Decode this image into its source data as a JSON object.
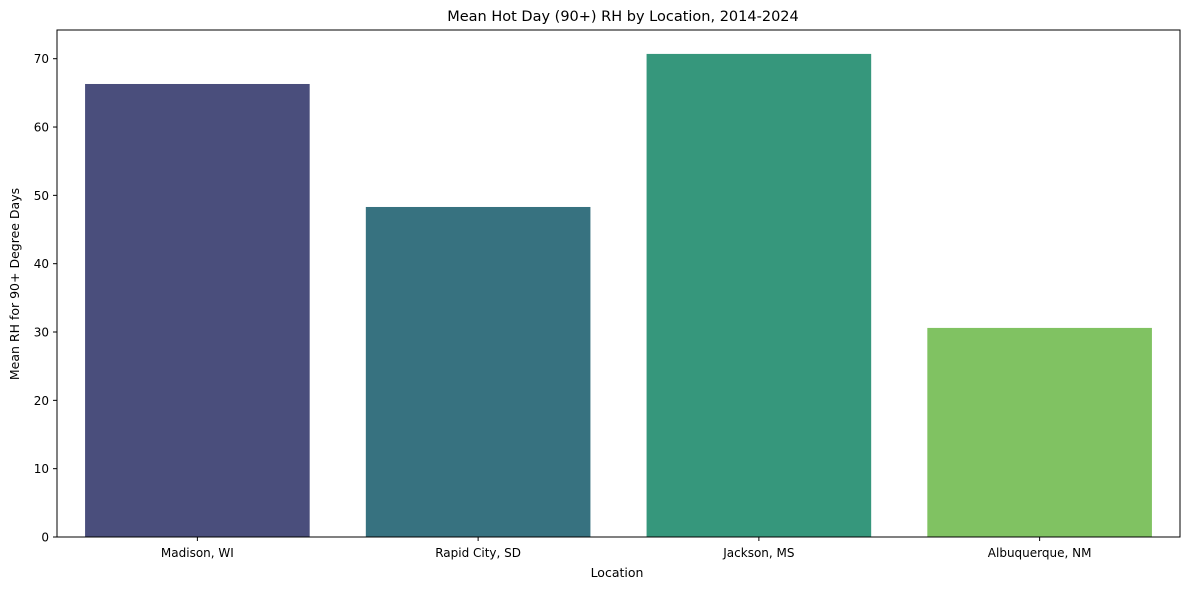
{
  "chart_data": {
    "type": "bar",
    "title": "Mean Hot Day (90+) RH by Location, 2014-2024",
    "xlabel": "Location",
    "ylabel": "Mean RH for 90+ Degree Days",
    "categories": [
      "Madison, WI",
      "Rapid City, SD",
      "Jackson, MS",
      "Albuquerque, NM"
    ],
    "values": [
      66.3,
      48.3,
      70.7,
      30.6
    ],
    "colors": [
      "#4a4e7c",
      "#377280",
      "#36977c",
      "#80c262"
    ],
    "ylim": [
      0,
      74.2
    ],
    "yticks": [
      0,
      10,
      20,
      30,
      40,
      50,
      60,
      70
    ],
    "grid": false,
    "legend": "none"
  }
}
